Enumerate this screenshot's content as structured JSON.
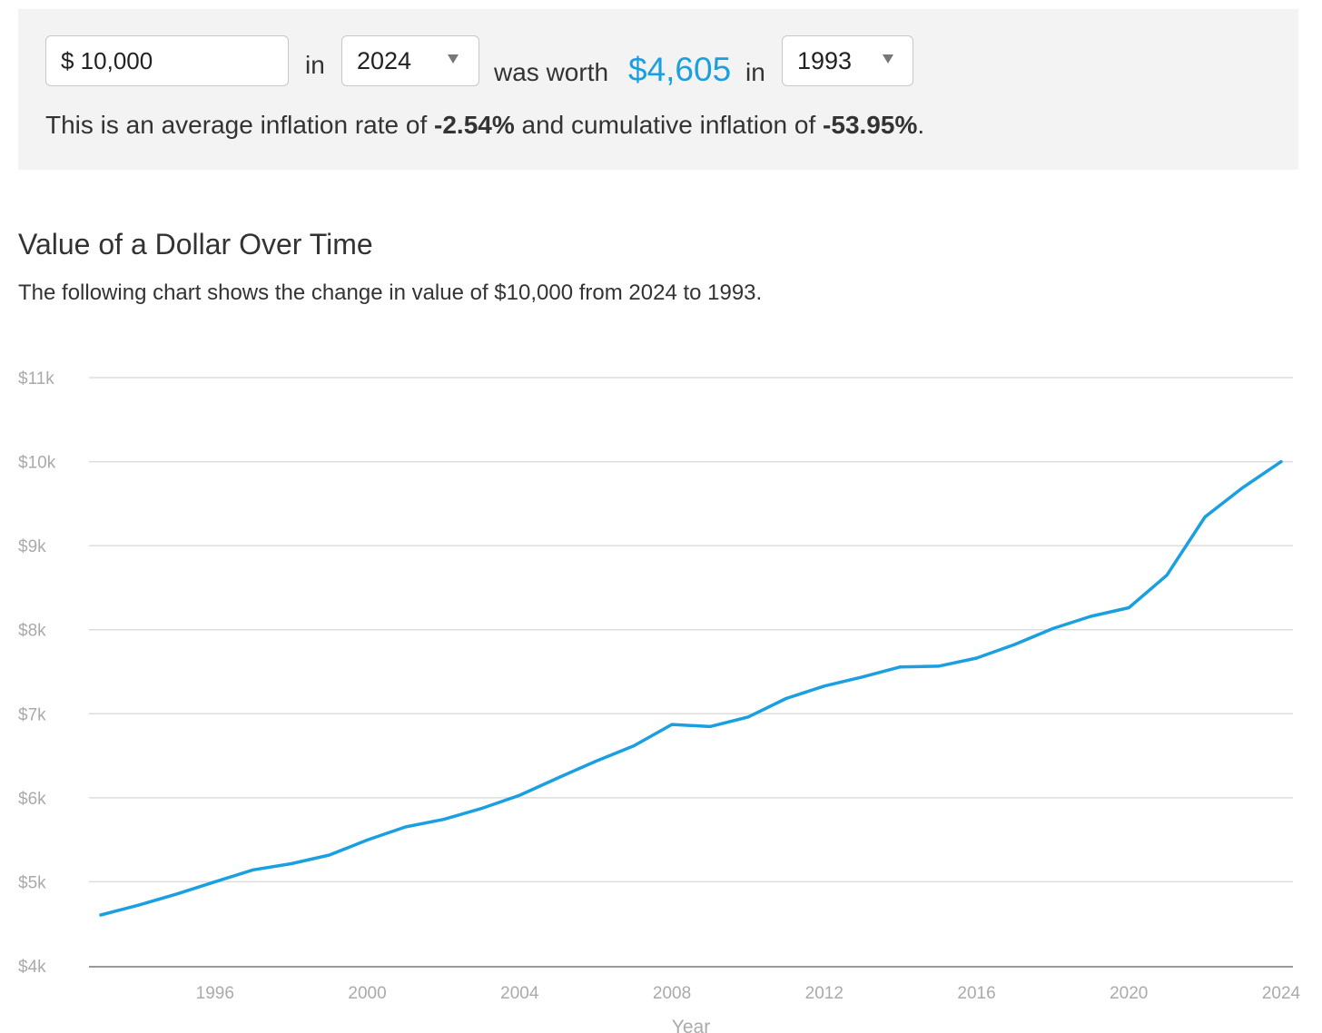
{
  "calculator": {
    "amount_value": "$ 10,000",
    "word_in": "in",
    "from_year": "2024",
    "word_was_worth": "was worth",
    "result_value": "$4,605",
    "word_in_2": "in",
    "to_year": "1993",
    "summary_prefix": "This is an average inflation rate of ",
    "avg_rate": "-2.54%",
    "summary_middle": " and cumulative inflation of ",
    "cumulative": "-53.95%",
    "summary_suffix": "."
  },
  "chart_section": {
    "title": "Value of a Dollar Over Time",
    "description": "The following chart shows the change in value of $10,000 from 2024 to 1993."
  },
  "colors": {
    "accent": "#1a9fe0",
    "grid": "#dddddd",
    "axis": "#999999",
    "tick_label": "#aaaaaa"
  },
  "chart_data": {
    "type": "line",
    "title": "",
    "xlabel": "Year",
    "ylabel": "",
    "xlim": [
      1993,
      2024
    ],
    "ylim": [
      4000,
      11000
    ],
    "grid": true,
    "legend": "none",
    "x_ticks": [
      1996,
      2000,
      2004,
      2008,
      2012,
      2016,
      2020,
      2024
    ],
    "y_ticks": [
      4000,
      5000,
      6000,
      7000,
      8000,
      9000,
      10000,
      11000
    ],
    "y_tick_labels": [
      "$4k",
      "$5k",
      "$6k",
      "$7k",
      "$8k",
      "$9k",
      "$10k",
      "$11k"
    ],
    "series": [
      {
        "x": [
          1993,
          1994,
          1995,
          1996,
          1997,
          1998,
          1999,
          2000,
          2001,
          2002,
          2003,
          2004,
          2005,
          2006,
          2007,
          2008,
          2009,
          2010,
          2011,
          2012,
          2013,
          2014,
          2015,
          2016,
          2017,
          2018,
          2019,
          2020,
          2021,
          2022,
          2023,
          2024
        ],
        "values": [
          4605,
          4723,
          4856,
          5000,
          5142,
          5215,
          5318,
          5497,
          5653,
          5742,
          5873,
          6030,
          6235,
          6435,
          6618,
          6872,
          6848,
          6961,
          7181,
          7329,
          7437,
          7557,
          7566,
          7662,
          7824,
          8013,
          8159,
          8262,
          8649,
          9342,
          9694,
          10000
        ]
      }
    ]
  }
}
